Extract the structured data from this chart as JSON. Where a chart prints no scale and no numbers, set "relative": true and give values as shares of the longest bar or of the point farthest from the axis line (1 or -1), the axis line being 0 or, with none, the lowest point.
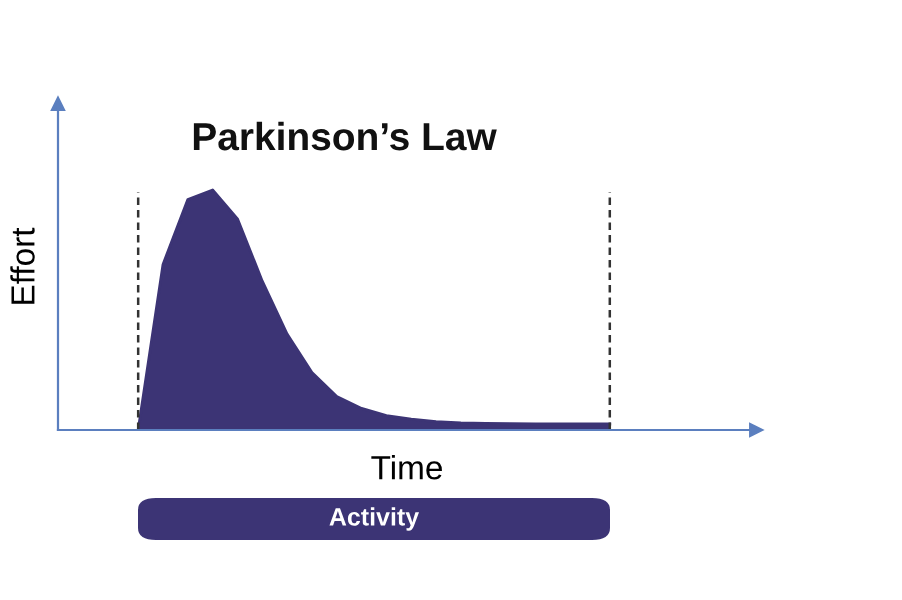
{
  "chart_data": {
    "type": "area",
    "title": "Parkinson’s Law",
    "xlabel": "Time",
    "ylabel": "Effort",
    "relative": true,
    "categories": [
      null,
      null,
      null,
      null,
      null,
      null,
      null,
      null,
      null,
      null,
      null,
      null,
      null,
      null,
      null,
      null,
      null,
      null,
      null,
      null
    ],
    "series": [
      {
        "color": "#3c3475",
        "values": [
          0,
          0.69,
          0.96,
          1.0,
          0.88,
          0.62,
          0.4,
          0.24,
          0.14,
          0.09,
          0.06,
          0.045,
          0.035,
          0.03,
          0.028,
          0.026,
          0.025,
          0.025,
          0.025,
          0.025
        ]
      }
    ],
    "annotations": [
      "Activity"
    ]
  }
}
